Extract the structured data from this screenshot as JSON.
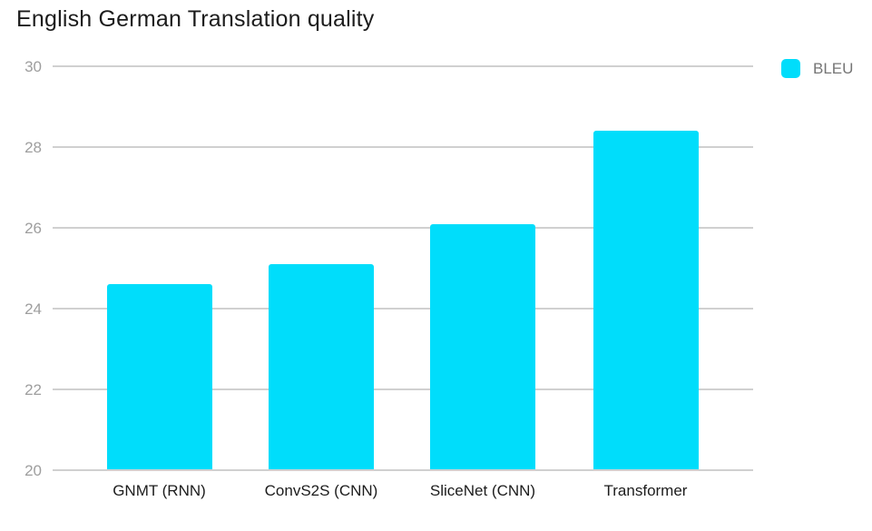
{
  "chart_data": {
    "type": "bar",
    "title": "English German Translation quality",
    "categories": [
      "GNMT (RNN)",
      "ConvS2S (CNN)",
      "SliceNet (CNN)",
      "Transformer"
    ],
    "series": [
      {
        "name": "BLEU",
        "values": [
          24.6,
          25.1,
          26.1,
          28.4
        ]
      }
    ],
    "xlabel": "",
    "ylabel": "",
    "ylim": [
      20,
      30
    ],
    "yticks": [
      20,
      22,
      24,
      26,
      28,
      30
    ],
    "grid": "horizontal",
    "legend": {
      "label": "BLEU",
      "position": "top-right"
    },
    "colors": {
      "bar": "#00ddfb",
      "gridline": "#d0d0d0",
      "y_tick_label": "#9e9e9e",
      "x_axis_label": "#1c1c1c",
      "title": "#1c1c1c",
      "legend_text": "#757575",
      "background": "#ffffff"
    }
  }
}
